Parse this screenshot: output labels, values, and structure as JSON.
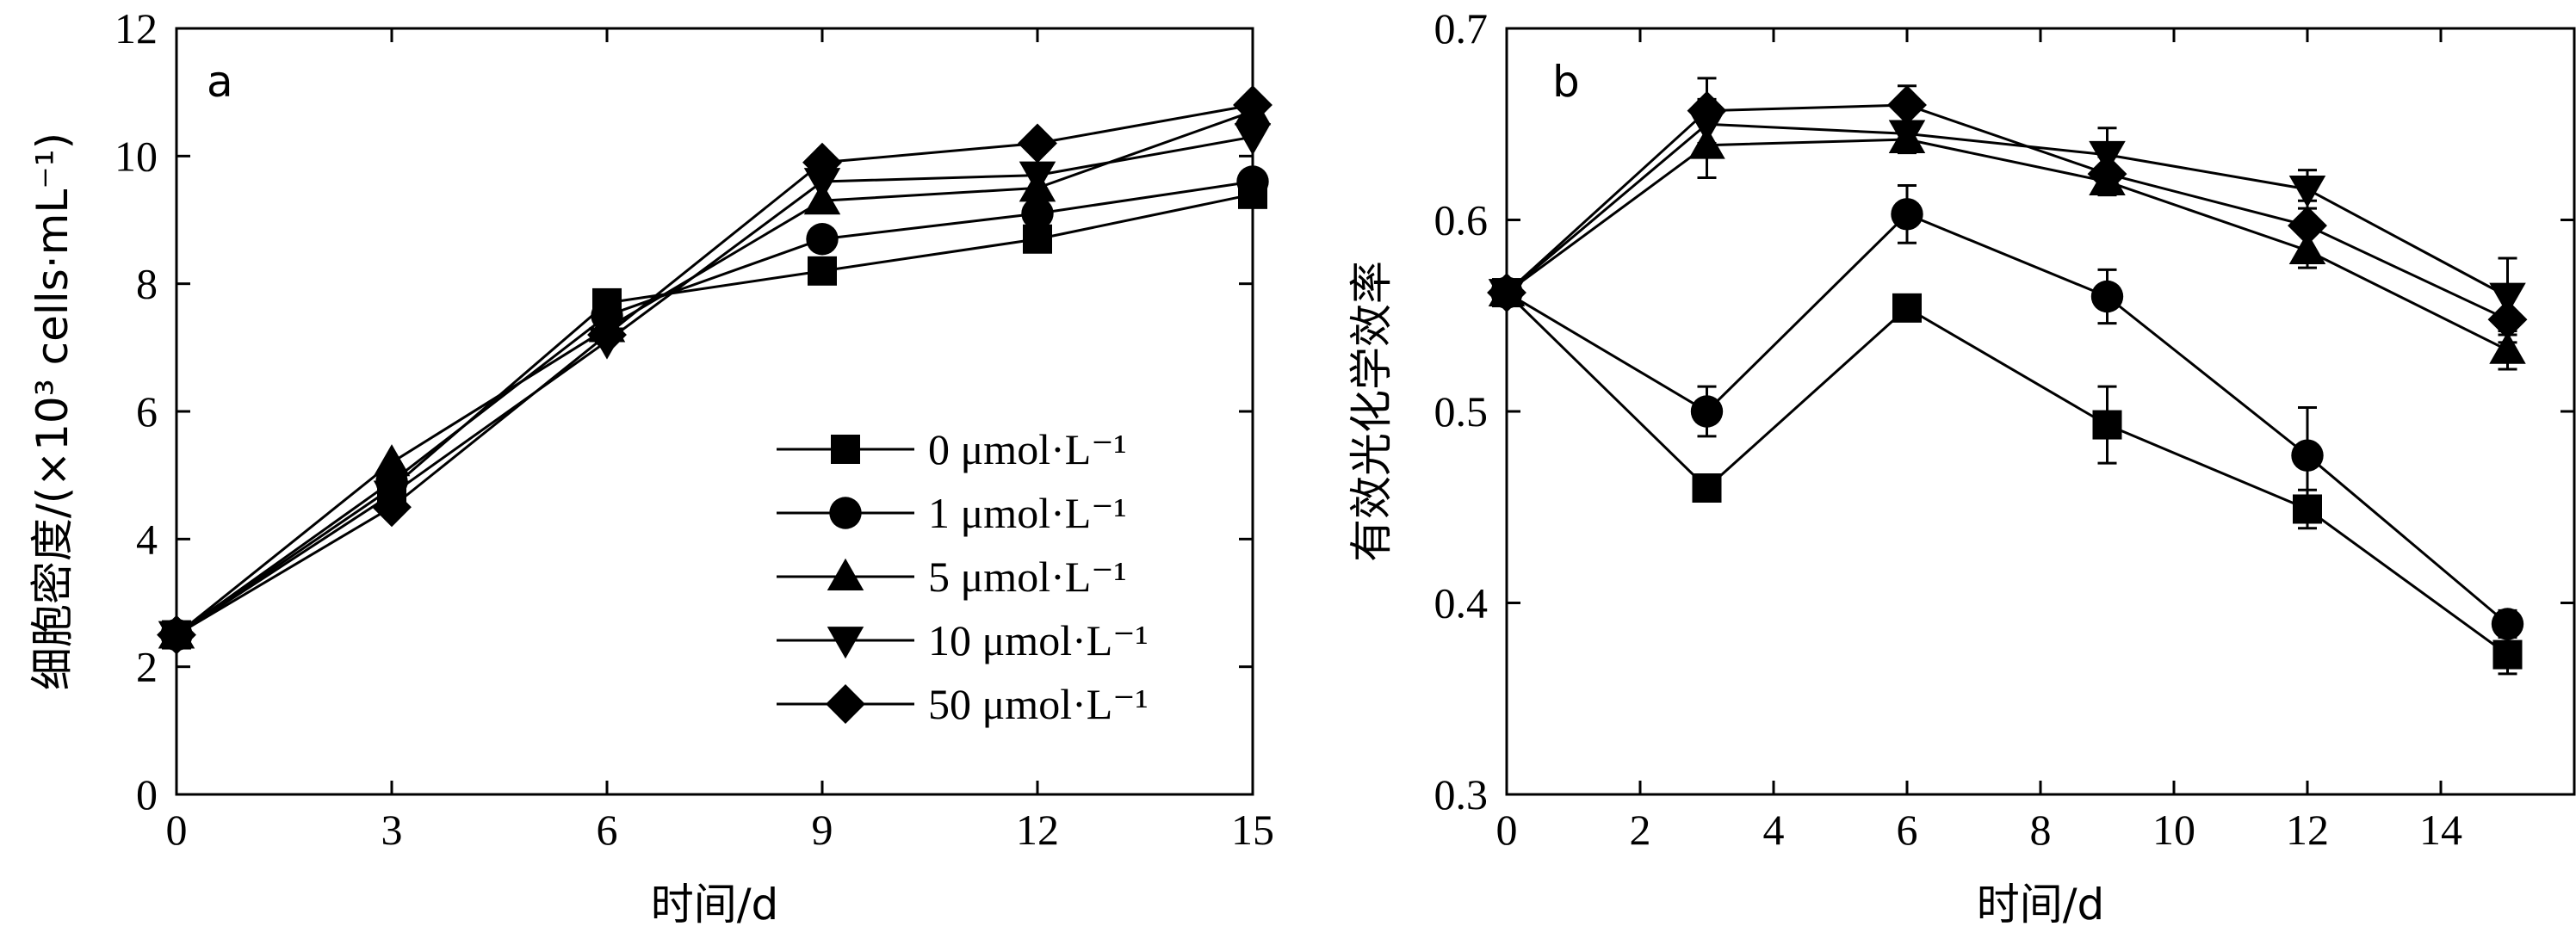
{
  "chart_data": [
    {
      "type": "line",
      "panel_label": "a",
      "xlabel": "时间/d",
      "ylabel": "细胞密度/(×10³ cells·mL⁻¹)",
      "xlim": [
        0,
        15
      ],
      "ylim": [
        0,
        12
      ],
      "xticks": [
        "0",
        "3",
        "6",
        "9",
        "12",
        "15"
      ],
      "yticks": [
        "0",
        "2",
        "4",
        "6",
        "8",
        "10",
        "12"
      ],
      "grid": false,
      "legend_position": "center-right",
      "x": [
        0,
        3,
        6,
        9,
        12,
        15
      ],
      "series": [
        {
          "name": "0 μmol·L⁻¹",
          "marker": "square",
          "values": [
            2.5,
            4.8,
            7.7,
            8.2,
            8.7,
            9.4
          ]
        },
        {
          "name": "1 μmol·L⁻¹",
          "marker": "circle",
          "values": [
            2.5,
            4.9,
            7.5,
            8.7,
            9.1,
            9.6
          ]
        },
        {
          "name": "5 μmol·L⁻¹",
          "marker": "triangle-up",
          "values": [
            2.5,
            5.2,
            7.3,
            9.3,
            9.5,
            10.7
          ]
        },
        {
          "name": "10 μmol·L⁻¹",
          "marker": "triangle-down",
          "values": [
            2.5,
            4.7,
            7.1,
            9.6,
            9.7,
            10.3
          ]
        },
        {
          "name": "50 μmol·L⁻¹",
          "marker": "diamond",
          "values": [
            2.5,
            4.5,
            7.2,
            9.9,
            10.2,
            10.8
          ]
        }
      ]
    },
    {
      "type": "line",
      "panel_label": "b",
      "xlabel": "时间/d",
      "ylabel": "有效光化学效率",
      "xlim": [
        0,
        16
      ],
      "ylim": [
        0.3,
        0.7
      ],
      "xticks": [
        "0",
        "2",
        "4",
        "6",
        "8",
        "10",
        "12",
        "14"
      ],
      "yticks": [
        "0.3",
        "0.4",
        "0.5",
        "0.6",
        "0.7"
      ],
      "grid": false,
      "x": [
        0,
        3,
        6,
        9,
        12,
        15
      ],
      "series": [
        {
          "name": "0 μmol·L⁻¹",
          "marker": "square",
          "values": [
            0.562,
            0.46,
            0.554,
            0.493,
            0.449,
            0.373
          ],
          "error": [
            0,
            0.004,
            0.004,
            0.02,
            0.01,
            0.01
          ]
        },
        {
          "name": "1 μmol·L⁻¹",
          "marker": "circle",
          "values": [
            0.562,
            0.5,
            0.603,
            0.56,
            0.477,
            0.389
          ],
          "error": [
            0,
            0.013,
            0.015,
            0.014,
            0.025,
            0.007
          ]
        },
        {
          "name": "5 μmol·L⁻¹",
          "marker": "triangle-up",
          "values": [
            0.562,
            0.639,
            0.642,
            0.62,
            0.584,
            0.532
          ],
          "error": [
            0,
            0.017,
            0.007,
            0.007,
            0.009,
            0.01
          ]
        },
        {
          "name": "10 μmol·L⁻¹",
          "marker": "triangle-down",
          "values": [
            0.562,
            0.65,
            0.645,
            0.634,
            0.616,
            0.56
          ],
          "error": [
            0,
            0.013,
            0.006,
            0.014,
            0.01,
            0.02
          ]
        },
        {
          "name": "50 μmol·L⁻¹",
          "marker": "diamond",
          "values": [
            0.562,
            0.657,
            0.66,
            0.624,
            0.597,
            0.548
          ],
          "error": [
            0,
            0.017,
            0.01,
            0.009,
            0.013,
            0.012
          ]
        }
      ]
    }
  ]
}
